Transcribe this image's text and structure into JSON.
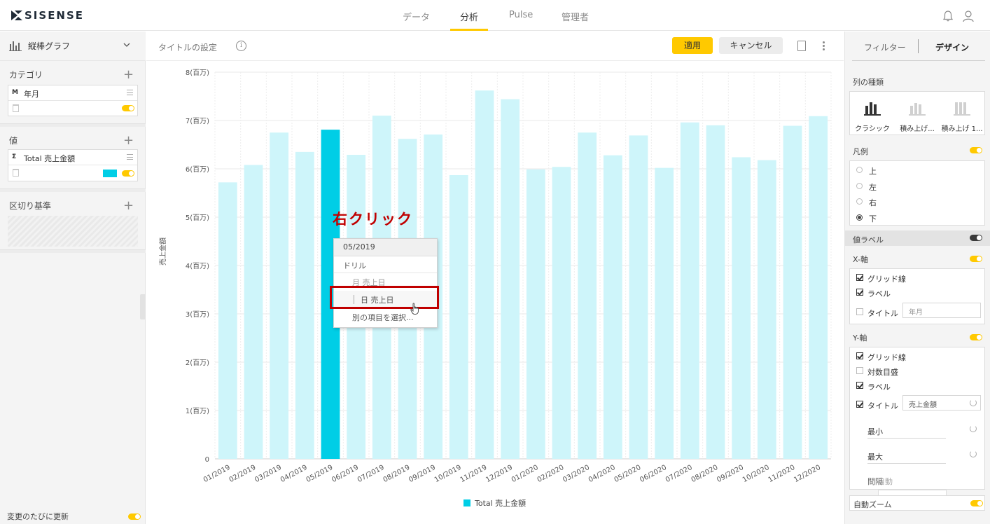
{
  "app": {
    "logo_text": "SISENSE"
  },
  "nav": {
    "tabs": [
      {
        "label": "データ"
      },
      {
        "label": "分析"
      },
      {
        "label": "Pulse"
      },
      {
        "label": "管理者"
      }
    ],
    "active": "分析"
  },
  "left_panel": {
    "chart_type_label": "縦棒グラフ",
    "category": {
      "title": "カテゴリ",
      "field_tag": "M",
      "field_label": "年月"
    },
    "value": {
      "title": "値",
      "field_tag": "Σ",
      "field_label": "Total 売上金額",
      "color": "#00cee6"
    },
    "break_by": {
      "title": "区切り基準"
    },
    "auto_update_label": "変更のたびに更新"
  },
  "center": {
    "title_setting": "タイトルの設定",
    "apply_label": "適用",
    "cancel_label": "キャンセル",
    "annotation_text": "右クリック",
    "context_menu": {
      "header": "05/2019",
      "section": "ドリル",
      "items": [
        "月 売上日",
        "日 売上日",
        "別の項目を選択..."
      ]
    }
  },
  "chart_data": {
    "type": "bar",
    "categories": [
      "01/2019",
      "02/2019",
      "03/2019",
      "04/2019",
      "05/2019",
      "06/2019",
      "07/2019",
      "08/2019",
      "09/2019",
      "10/2019",
      "11/2019",
      "12/2019",
      "01/2020",
      "02/2020",
      "03/2020",
      "04/2020",
      "05/2020",
      "06/2020",
      "07/2020",
      "08/2020",
      "09/2020",
      "10/2020",
      "11/2020",
      "12/2020"
    ],
    "series": [
      {
        "name": "Total 売上金額",
        "values": [
          5.72,
          6.08,
          6.75,
          6.35,
          6.81,
          6.29,
          7.1,
          6.62,
          6.71,
          5.87,
          7.62,
          7.44,
          5.99,
          6.04,
          6.75,
          6.28,
          6.69,
          6.02,
          6.96,
          6.9,
          6.24,
          6.18,
          6.89,
          7.09
        ]
      }
    ],
    "highlighted_category": "05/2019",
    "ylabel": "売上金額",
    "ylim": [
      0,
      8
    ],
    "yticks": [
      "0",
      "1(百万)",
      "2(百万)",
      "3(百万)",
      "4(百万)",
      "5(百万)",
      "6(百万)",
      "7(百万)",
      "8(百万)"
    ],
    "grid": true,
    "legend": "bottom",
    "bar_color": "#cef5fa",
    "highlight_color": "#00cee6"
  },
  "right_panel": {
    "tab_filter": "フィルター",
    "tab_design": "デザイン",
    "column_type_title": "列の種類",
    "column_types": [
      "クラシック",
      "積み上げ...",
      "積み上げ 1..."
    ],
    "legend_title": "凡例",
    "legend_options": [
      "上",
      "左",
      "右",
      "下"
    ],
    "legend_selected": "下",
    "value_label_title": "値ラベル",
    "x_axis": {
      "title": "X-軸",
      "grid": "グリッド線",
      "label": "ラベル",
      "axis_title": "タイトル",
      "axis_title_placeholder": "年月"
    },
    "y_axis": {
      "title": "Y-軸",
      "grid": "グリッド線",
      "log": "対数目盛",
      "label": "ラベル",
      "axis_title": "タイトル",
      "axis_title_value": "売上金額",
      "min": "最小",
      "max": "最大",
      "interval": "間隔",
      "interval_overlay": "自動"
    },
    "auto_zoom": "自動ズーム"
  }
}
